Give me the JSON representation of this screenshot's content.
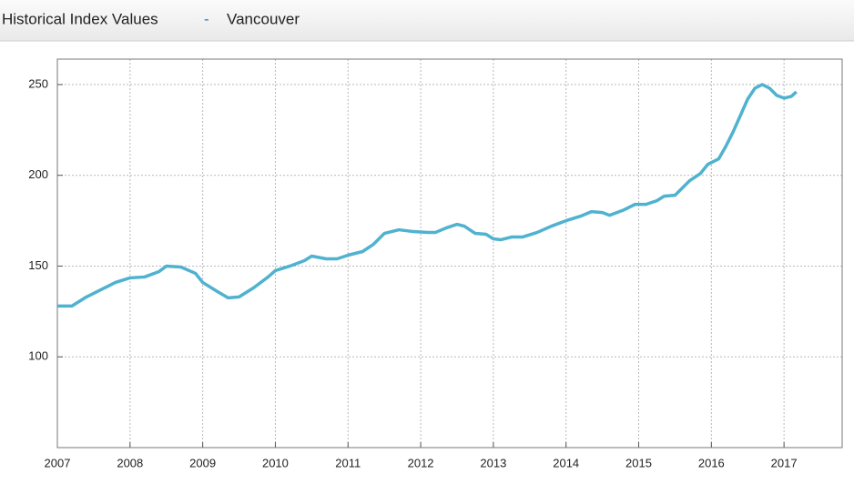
{
  "chart_data": {
    "type": "line",
    "title": "Historical Index Values",
    "title_separator": "-",
    "subtitle": "Vancouver",
    "x": [
      2007.0,
      2007.2,
      2007.4,
      2007.6,
      2007.8,
      2008.0,
      2008.2,
      2008.4,
      2008.5,
      2008.7,
      2008.9,
      2009.0,
      2009.2,
      2009.35,
      2009.5,
      2009.7,
      2009.9,
      2010.0,
      2010.2,
      2010.4,
      2010.5,
      2010.7,
      2010.85,
      2011.0,
      2011.2,
      2011.35,
      2011.5,
      2011.7,
      2011.9,
      2012.1,
      2012.2,
      2012.35,
      2012.5,
      2012.6,
      2012.75,
      2012.9,
      2013.0,
      2013.1,
      2013.25,
      2013.4,
      2013.6,
      2013.8,
      2014.0,
      2014.2,
      2014.35,
      2014.5,
      2014.6,
      2014.8,
      2014.95,
      2015.1,
      2015.25,
      2015.35,
      2015.5,
      2015.7,
      2015.85,
      2015.95,
      2016.1,
      2016.2,
      2016.3,
      2016.4,
      2016.5,
      2016.6,
      2016.7,
      2016.8,
      2016.9,
      2017.0,
      2017.1,
      2017.17
    ],
    "series": [
      {
        "name": "Vancouver",
        "color": "#4fb2cf",
        "values": [
          128,
          128,
          133,
          137,
          141,
          143.5,
          144,
          147,
          150,
          149.5,
          146,
          141,
          136,
          132.5,
          133,
          138,
          144,
          147.5,
          150,
          153,
          155.5,
          154,
          154,
          156,
          158,
          162,
          168,
          170,
          169,
          168.5,
          168.5,
          171,
          173,
          172,
          168,
          167.5,
          165,
          164.5,
          166,
          166,
          168.5,
          172,
          175,
          177.5,
          180,
          179.5,
          178,
          181,
          184,
          184,
          186,
          188.5,
          189,
          197,
          201,
          206,
          209,
          216,
          224,
          233,
          242,
          248,
          250,
          248,
          244,
          242.5,
          243.5,
          246
        ]
      }
    ],
    "xlim": [
      2007.0,
      2017.8
    ],
    "xticks": [
      2007,
      2008,
      2009,
      2010,
      2011,
      2012,
      2013,
      2014,
      2015,
      2016,
      2017
    ],
    "ylim": [
      50,
      264
    ],
    "yticks": [
      100,
      150,
      200,
      250
    ],
    "grid": true
  }
}
